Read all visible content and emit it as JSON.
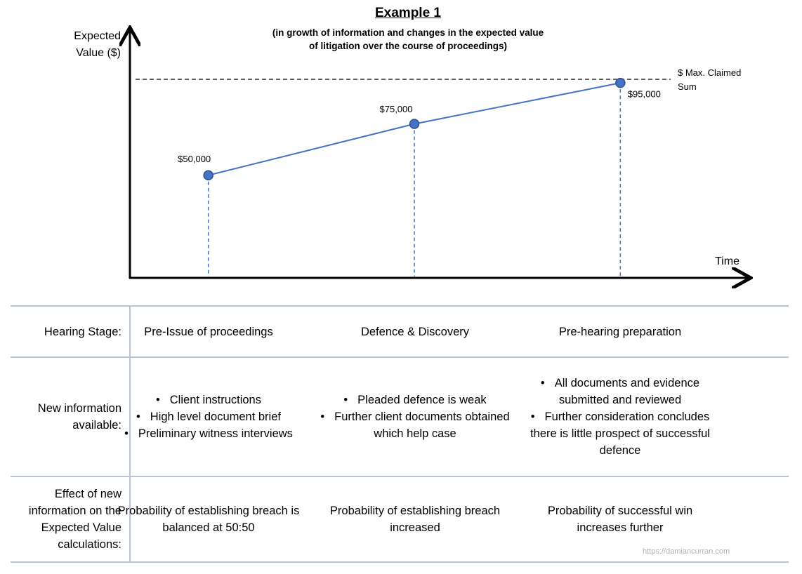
{
  "chart_data": {
    "type": "line",
    "title": "Example 1",
    "subtitle": [
      "(in growth of information and changes in the expected value",
      "of litigation over the course of proceedings)"
    ],
    "y_label": "Expected Value ($)",
    "x_label": "Time",
    "annotation": "$ Max. Claimed Sum",
    "categories": [
      null,
      null,
      null
    ],
    "values": [
      50000,
      75000,
      95000
    ],
    "value_labels": [
      "$50,000",
      "$75,000",
      "$95,000"
    ],
    "ylim": [
      0,
      120000
    ],
    "color": "#4472c4"
  },
  "table": {
    "rows": [
      {
        "header": "Hearing Stage:",
        "cells": [
          [
            "Pre-Issue of proceedings"
          ],
          [
            "Defence & Discovery"
          ],
          [
            "Pre-hearing preparation"
          ]
        ],
        "bullets": false
      },
      {
        "header": "New information available:",
        "cells": [
          [
            "Client instructions",
            "High level document brief",
            "Preliminary witness interviews"
          ],
          [
            "Pleaded defence is weak",
            "Further client documents obtained which help case"
          ],
          [
            "All documents and evidence submitted and reviewed",
            "Further consideration concludes there is little prospect of successful defence"
          ]
        ],
        "bullets": true
      },
      {
        "header": "Effect of new information on the Expected Value calculations:",
        "cells": [
          [
            "Probability of establishing breach is balanced at 50:50"
          ],
          [
            "Probability of establishing breach increased"
          ],
          [
            "Probability of successful win increases further"
          ]
        ],
        "bullets": false
      }
    ]
  },
  "footer": "https://damiancurran.com"
}
